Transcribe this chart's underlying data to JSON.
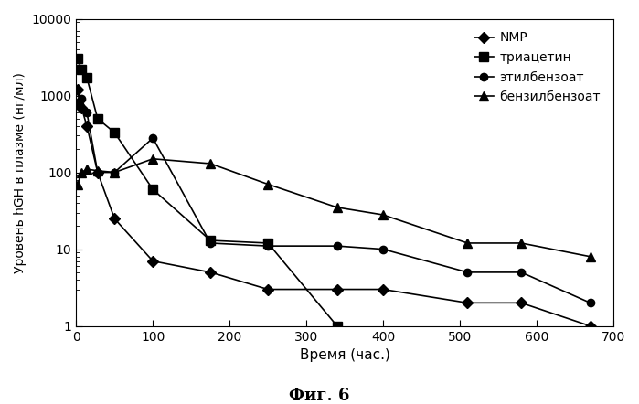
{
  "title": "Фиг. 6",
  "xlabel": "Время (час.)",
  "ylabel": "Уровень hGH в плазме (нг/мл)",
  "series": [
    {
      "label": "NMP",
      "marker": "D",
      "x": [
        2,
        7,
        14,
        28,
        50,
        100,
        175,
        250,
        340,
        400,
        510,
        580,
        670
      ],
      "y": [
        1200,
        700,
        400,
        100,
        25,
        7,
        5,
        3,
        3,
        3,
        2,
        2,
        1
      ]
    },
    {
      "label": "триацетин",
      "marker": "s",
      "x": [
        2,
        7,
        14,
        28,
        50,
        100,
        175,
        250,
        340
      ],
      "y": [
        3000,
        2200,
        1700,
        500,
        330,
        60,
        13,
        12,
        1
      ]
    },
    {
      "label": "этилбензоат",
      "marker": "o",
      "x": [
        2,
        7,
        14,
        28,
        50,
        100,
        175,
        250,
        340,
        400,
        510,
        580,
        670
      ],
      "y": [
        800,
        900,
        600,
        100,
        100,
        280,
        12,
        11,
        11,
        10,
        5,
        5,
        2
      ]
    },
    {
      "label": "бензилбензоат",
      "marker": "^",
      "x": [
        2,
        7,
        14,
        28,
        50,
        100,
        175,
        250,
        340,
        400,
        510,
        580,
        670
      ],
      "y": [
        70,
        100,
        110,
        105,
        100,
        150,
        130,
        70,
        35,
        28,
        12,
        12,
        8
      ]
    }
  ],
  "ylim": [
    1,
    10000
  ],
  "xlim": [
    0,
    700
  ],
  "xticks": [
    0,
    100,
    200,
    300,
    400,
    500,
    600,
    700
  ],
  "yticks": [
    1,
    10,
    100,
    1000,
    10000
  ],
  "ytick_labels": [
    "1",
    "10",
    "100",
    "1000",
    "10000"
  ],
  "background_color": "#ffffff",
  "legend_labels": [
    "NMP",
    "триацетин",
    "этилбензоат",
    "бензилбензоат"
  ]
}
